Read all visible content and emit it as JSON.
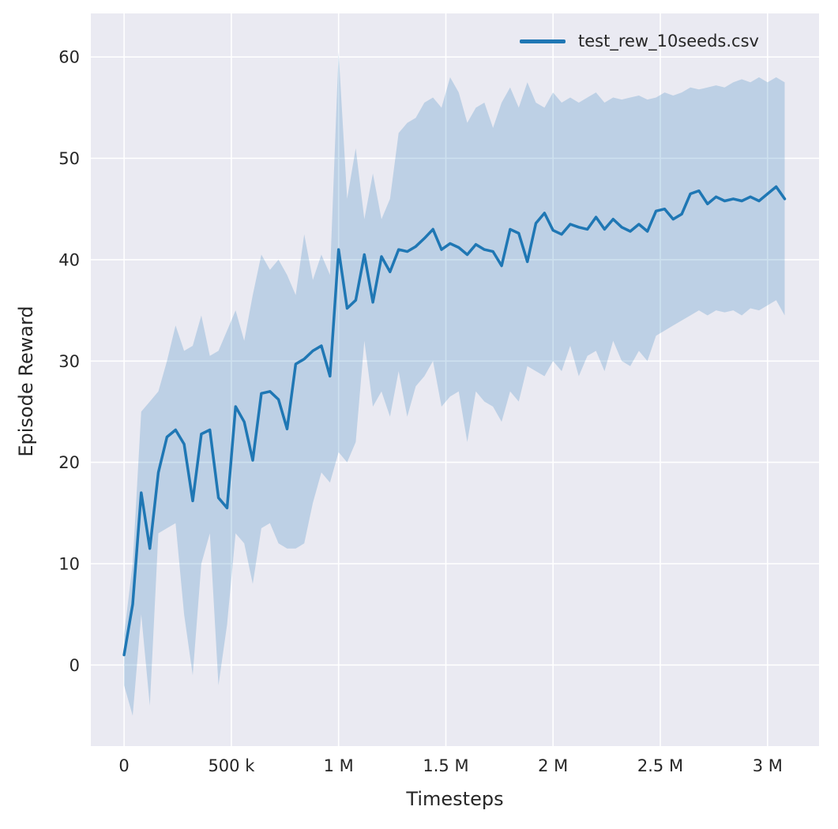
{
  "figure": {
    "legend": {
      "label": "test_rew_10seeds.csv"
    },
    "x_axis": {
      "label": "Timesteps"
    },
    "y_axis": {
      "label": "Episode Reward"
    }
  },
  "colors": {
    "line": "#1f77b4",
    "band": "#1f77b4",
    "band_opacity": 0.22,
    "plot_bg": "#eaeaf2",
    "grid": "#ffffff",
    "text": "#262626"
  },
  "chart_data": {
    "type": "line",
    "title": "",
    "xlabel": "Timesteps",
    "ylabel": "Episode Reward",
    "legend_entries": [
      "test_rew_10seeds.csv"
    ],
    "legend_position": "upper right",
    "grid": true,
    "xlim": [
      -155000,
      3240000
    ],
    "ylim": [
      -8,
      64.3
    ],
    "x_ticks": {
      "values": [
        0,
        500000,
        1000000,
        1500000,
        2000000,
        2500000,
        3000000
      ],
      "labels": [
        "0",
        "500 k",
        "1 M",
        "1.5 M",
        "2 M",
        "2.5 M",
        "3 M"
      ]
    },
    "y_ticks": {
      "values": [
        0,
        10,
        20,
        30,
        40,
        50,
        60
      ],
      "labels": [
        "0",
        "10",
        "20",
        "30",
        "40",
        "50",
        "60"
      ]
    },
    "series": [
      {
        "name": "test_rew_10seeds.csv",
        "x": [
          0,
          40000,
          80000,
          120000,
          160000,
          200000,
          240000,
          280000,
          320000,
          360000,
          400000,
          440000,
          480000,
          520000,
          560000,
          600000,
          640000,
          680000,
          720000,
          760000,
          800000,
          840000,
          880000,
          920000,
          960000,
          1000000,
          1040000,
          1080000,
          1120000,
          1160000,
          1200000,
          1240000,
          1280000,
          1320000,
          1360000,
          1400000,
          1440000,
          1480000,
          1520000,
          1560000,
          1600000,
          1640000,
          1680000,
          1720000,
          1760000,
          1800000,
          1840000,
          1880000,
          1920000,
          1960000,
          2000000,
          2040000,
          2080000,
          2120000,
          2160000,
          2200000,
          2240000,
          2280000,
          2320000,
          2360000,
          2400000,
          2440000,
          2480000,
          2520000,
          2560000,
          2600000,
          2640000,
          2680000,
          2720000,
          2760000,
          2800000,
          2840000,
          2880000,
          2920000,
          2960000,
          3000000,
          3040000,
          3080000
        ],
        "mean": [
          1,
          6,
          17,
          11.5,
          19,
          22.5,
          23.2,
          21.8,
          16.2,
          22.8,
          23.2,
          16.5,
          15.5,
          25.5,
          24,
          20.2,
          26.8,
          27,
          26.2,
          23.3,
          29.7,
          30.2,
          31,
          31.5,
          28.5,
          41,
          35.2,
          36,
          40.5,
          35.8,
          40.3,
          38.8,
          41,
          40.8,
          41.3,
          42.1,
          43,
          41,
          41.6,
          41.2,
          40.5,
          41.5,
          41,
          40.8,
          39.4,
          43,
          42.6,
          39.8,
          43.6,
          44.6,
          42.9,
          42.5,
          43.5,
          43.2,
          43,
          44.2,
          43,
          44,
          43.2,
          42.8,
          43.5,
          42.8,
          44.8,
          45,
          44,
          44.5,
          46.5,
          46.8,
          45.5,
          46.2,
          45.8,
          46,
          45.8,
          46.2,
          45.8,
          46.5,
          47.2,
          46
        ],
        "band_lower": [
          -2,
          -5,
          5,
          -4,
          13,
          13.5,
          14,
          5,
          -1,
          10,
          13,
          -2,
          4,
          13,
          12,
          8,
          13.5,
          14,
          12,
          11.5,
          11.5,
          12,
          16,
          19,
          18,
          21,
          20,
          22,
          32,
          25.5,
          27,
          24.5,
          29,
          24.5,
          27.5,
          28.5,
          30,
          25.5,
          26.5,
          27,
          22,
          27,
          26,
          25.5,
          24,
          27,
          26,
          29.5,
          29,
          28.5,
          30,
          29,
          31.5,
          28.5,
          30.5,
          31,
          29,
          32,
          30,
          29.5,
          31,
          30,
          32.5,
          33,
          33.5,
          34,
          34.5,
          35,
          34.5,
          35,
          34.8,
          35,
          34.5,
          35.2,
          35,
          35.5,
          36,
          34.5
        ],
        "band_upper": [
          3,
          10,
          25,
          26,
          27,
          30,
          33.5,
          31,
          31.5,
          34.5,
          30.5,
          31,
          33,
          35,
          32,
          36.5,
          40.5,
          39,
          40,
          38.5,
          36.5,
          42.5,
          38,
          40.5,
          38.5,
          60.5,
          46,
          51,
          44,
          48.5,
          44,
          46,
          52.5,
          53.5,
          54,
          55.5,
          56,
          55,
          58,
          56.5,
          53.5,
          55,
          55.5,
          53,
          55.5,
          57,
          55,
          57.5,
          55.5,
          55,
          56.5,
          55.5,
          56,
          55.5,
          56,
          56.5,
          55.5,
          56,
          55.8,
          56,
          56.2,
          55.8,
          56,
          56.5,
          56.2,
          56.5,
          57,
          56.8,
          57,
          57.2,
          57,
          57.5,
          57.8,
          57.5,
          58,
          57.5,
          58,
          57.5
        ]
      }
    ]
  }
}
